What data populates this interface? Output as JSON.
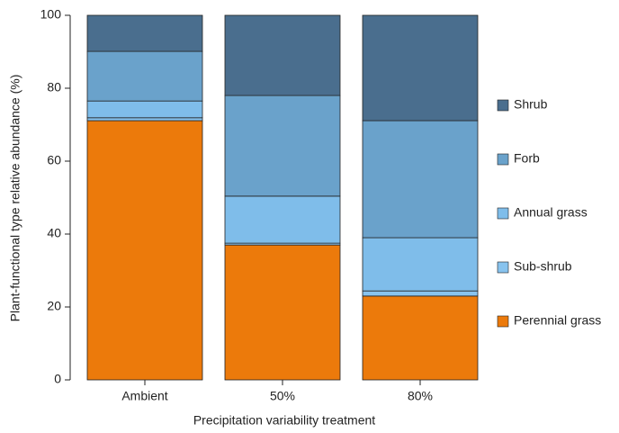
{
  "chart_data": {
    "type": "stacked-bar",
    "xlabel": "Precipitation variability treatment",
    "ylabel": "Plant-functional type relative abundance (%)",
    "categories": [
      "Ambient",
      "50%",
      "80%"
    ],
    "series": [
      {
        "name": "Perennial grass",
        "color": "#ec7a0b",
        "values": [
          71.1,
          37.0,
          23.0
        ]
      },
      {
        "name": "Sub-shrub",
        "color": "#88c3ee",
        "values": [
          0.8,
          0.5,
          1.4
        ]
      },
      {
        "name": "Annual grass",
        "color": "#7fbdea",
        "values": [
          4.6,
          12.9,
          14.6
        ]
      },
      {
        "name": "Forb",
        "color": "#6aa2cb",
        "values": [
          13.6,
          27.6,
          32.1
        ]
      },
      {
        "name": "Shrub",
        "color": "#4a6e8e",
        "values": [
          9.9,
          22.0,
          28.9
        ]
      }
    ],
    "ylim": [
      0,
      100
    ],
    "yticks": [
      0,
      20,
      40,
      60,
      80,
      100
    ]
  }
}
